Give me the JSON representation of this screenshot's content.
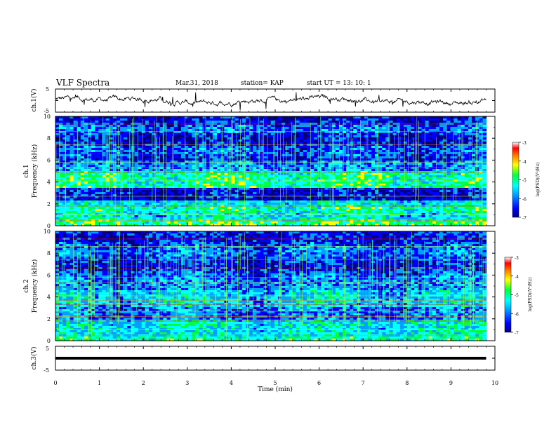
{
  "header": {
    "title": "VLF Spectra",
    "date": "Mar.31, 2018",
    "station": "station= KAP",
    "start": "start  UT =   13: 10: 1"
  },
  "chart_data": [
    {
      "type": "line",
      "ylabel": "ch.1(V)",
      "ylim": [
        -5,
        5
      ],
      "yticks": [
        "5",
        "-5"
      ],
      "xlim": [
        0,
        10
      ],
      "description_level": "noisy signal around 0 V, amplitude roughly ±2 V"
    },
    {
      "type": "heatmap",
      "ylabel": "ch.1\nFrequency (kHz)",
      "ylabel_lines": [
        "ch.1",
        "Frequency (kHz)"
      ],
      "ylim": [
        0,
        10
      ],
      "yticks": [
        "0",
        "2",
        "4",
        "6",
        "8",
        "10"
      ],
      "xlim": [
        0,
        10
      ],
      "data_end_min": 9.8
    },
    {
      "type": "heatmap",
      "ylabel_lines": [
        "ch.2",
        "Frequency (kHz)"
      ],
      "ylim": [
        0,
        10
      ],
      "yticks": [
        "0",
        "2",
        "4",
        "6",
        "8",
        "10"
      ],
      "xlim": [
        0,
        10
      ],
      "data_end_min": 9.8
    },
    {
      "type": "line",
      "ylabel": "ch.3(V)",
      "ylim": [
        -5,
        5
      ],
      "yticks": [
        "5",
        "-5"
      ],
      "xlim": [
        0,
        10
      ],
      "constant_value": 0
    }
  ],
  "xaxis": {
    "label": "Time  (min)",
    "ticks": [
      "0",
      "1",
      "2",
      "3",
      "4",
      "5",
      "6",
      "7",
      "8",
      "9",
      "10"
    ]
  },
  "colorbar": {
    "label": "log(PSD)(V²/Hz)",
    "ticks": [
      "-3",
      "-4",
      "-5",
      "-6",
      "-7"
    ],
    "colors": [
      "#000080",
      "#0000ff",
      "#00a0ff",
      "#00ffff",
      "#00ff40",
      "#ffff00",
      "#ff8000",
      "#ff0000",
      "#ffffff"
    ]
  }
}
